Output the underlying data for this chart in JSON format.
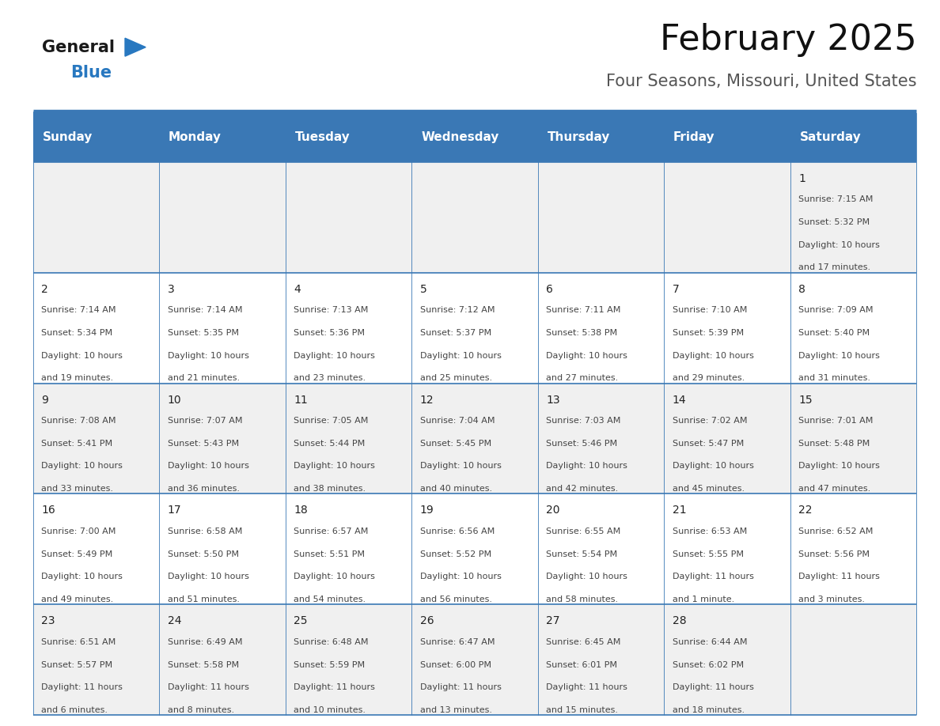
{
  "title": "February 2025",
  "subtitle": "Four Seasons, Missouri, United States",
  "days_of_week": [
    "Sunday",
    "Monday",
    "Tuesday",
    "Wednesday",
    "Thursday",
    "Friday",
    "Saturday"
  ],
  "header_bg": "#3a78b5",
  "header_text": "#ffffff",
  "cell_bg_odd": "#f0f0f0",
  "cell_bg_even": "#ffffff",
  "border_color": "#3a78b5",
  "cell_border_color": "#cccccc",
  "text_color": "#444444",
  "day_number_color": "#222222",
  "logo_general_color": "#1a1a1a",
  "logo_blue_color": "#2878c0",
  "logo_triangle_color": "#2878c0",
  "calendar_data": [
    [
      null,
      null,
      null,
      null,
      null,
      null,
      {
        "day": 1,
        "sunrise": "7:15 AM",
        "sunset": "5:32 PM",
        "daylight": "10 hours",
        "daylight2": "and 17 minutes."
      }
    ],
    [
      {
        "day": 2,
        "sunrise": "7:14 AM",
        "sunset": "5:34 PM",
        "daylight": "10 hours",
        "daylight2": "and 19 minutes."
      },
      {
        "day": 3,
        "sunrise": "7:14 AM",
        "sunset": "5:35 PM",
        "daylight": "10 hours",
        "daylight2": "and 21 minutes."
      },
      {
        "day": 4,
        "sunrise": "7:13 AM",
        "sunset": "5:36 PM",
        "daylight": "10 hours",
        "daylight2": "and 23 minutes."
      },
      {
        "day": 5,
        "sunrise": "7:12 AM",
        "sunset": "5:37 PM",
        "daylight": "10 hours",
        "daylight2": "and 25 minutes."
      },
      {
        "day": 6,
        "sunrise": "7:11 AM",
        "sunset": "5:38 PM",
        "daylight": "10 hours",
        "daylight2": "and 27 minutes."
      },
      {
        "day": 7,
        "sunrise": "7:10 AM",
        "sunset": "5:39 PM",
        "daylight": "10 hours",
        "daylight2": "and 29 minutes."
      },
      {
        "day": 8,
        "sunrise": "7:09 AM",
        "sunset": "5:40 PM",
        "daylight": "10 hours",
        "daylight2": "and 31 minutes."
      }
    ],
    [
      {
        "day": 9,
        "sunrise": "7:08 AM",
        "sunset": "5:41 PM",
        "daylight": "10 hours",
        "daylight2": "and 33 minutes."
      },
      {
        "day": 10,
        "sunrise": "7:07 AM",
        "sunset": "5:43 PM",
        "daylight": "10 hours",
        "daylight2": "and 36 minutes."
      },
      {
        "day": 11,
        "sunrise": "7:05 AM",
        "sunset": "5:44 PM",
        "daylight": "10 hours",
        "daylight2": "and 38 minutes."
      },
      {
        "day": 12,
        "sunrise": "7:04 AM",
        "sunset": "5:45 PM",
        "daylight": "10 hours",
        "daylight2": "and 40 minutes."
      },
      {
        "day": 13,
        "sunrise": "7:03 AM",
        "sunset": "5:46 PM",
        "daylight": "10 hours",
        "daylight2": "and 42 minutes."
      },
      {
        "day": 14,
        "sunrise": "7:02 AM",
        "sunset": "5:47 PM",
        "daylight": "10 hours",
        "daylight2": "and 45 minutes."
      },
      {
        "day": 15,
        "sunrise": "7:01 AM",
        "sunset": "5:48 PM",
        "daylight": "10 hours",
        "daylight2": "and 47 minutes."
      }
    ],
    [
      {
        "day": 16,
        "sunrise": "7:00 AM",
        "sunset": "5:49 PM",
        "daylight": "10 hours",
        "daylight2": "and 49 minutes."
      },
      {
        "day": 17,
        "sunrise": "6:58 AM",
        "sunset": "5:50 PM",
        "daylight": "10 hours",
        "daylight2": "and 51 minutes."
      },
      {
        "day": 18,
        "sunrise": "6:57 AM",
        "sunset": "5:51 PM",
        "daylight": "10 hours",
        "daylight2": "and 54 minutes."
      },
      {
        "day": 19,
        "sunrise": "6:56 AM",
        "sunset": "5:52 PM",
        "daylight": "10 hours",
        "daylight2": "and 56 minutes."
      },
      {
        "day": 20,
        "sunrise": "6:55 AM",
        "sunset": "5:54 PM",
        "daylight": "10 hours",
        "daylight2": "and 58 minutes."
      },
      {
        "day": 21,
        "sunrise": "6:53 AM",
        "sunset": "5:55 PM",
        "daylight": "11 hours",
        "daylight2": "and 1 minute."
      },
      {
        "day": 22,
        "sunrise": "6:52 AM",
        "sunset": "5:56 PM",
        "daylight": "11 hours",
        "daylight2": "and 3 minutes."
      }
    ],
    [
      {
        "day": 23,
        "sunrise": "6:51 AM",
        "sunset": "5:57 PM",
        "daylight": "11 hours",
        "daylight2": "and 6 minutes."
      },
      {
        "day": 24,
        "sunrise": "6:49 AM",
        "sunset": "5:58 PM",
        "daylight": "11 hours",
        "daylight2": "and 8 minutes."
      },
      {
        "day": 25,
        "sunrise": "6:48 AM",
        "sunset": "5:59 PM",
        "daylight": "11 hours",
        "daylight2": "and 10 minutes."
      },
      {
        "day": 26,
        "sunrise": "6:47 AM",
        "sunset": "6:00 PM",
        "daylight": "11 hours",
        "daylight2": "and 13 minutes."
      },
      {
        "day": 27,
        "sunrise": "6:45 AM",
        "sunset": "6:01 PM",
        "daylight": "11 hours",
        "daylight2": "and 15 minutes."
      },
      {
        "day": 28,
        "sunrise": "6:44 AM",
        "sunset": "6:02 PM",
        "daylight": "11 hours",
        "daylight2": "and 18 minutes."
      },
      null
    ]
  ],
  "fig_width": 11.88,
  "fig_height": 9.18,
  "header_fontsize": 11,
  "day_number_fontsize": 10,
  "cell_text_fontsize": 8,
  "title_fontsize": 32,
  "subtitle_fontsize": 15
}
